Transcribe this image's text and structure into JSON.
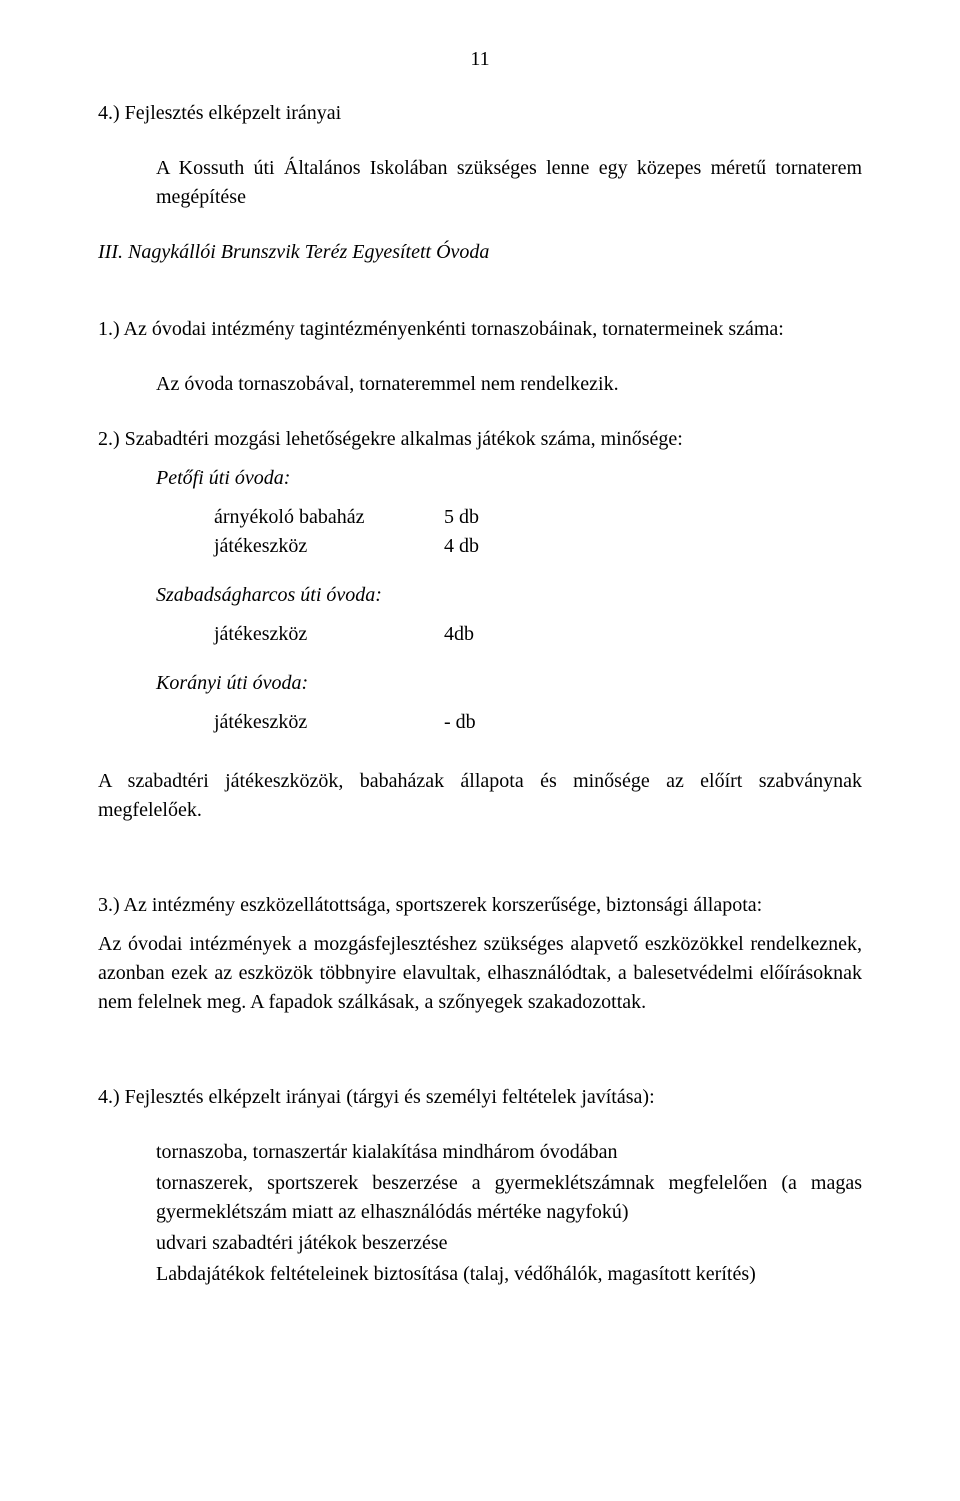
{
  "page_number": "11",
  "colors": {
    "text": "#000000",
    "background": "#ffffff"
  },
  "typography": {
    "family": "Book Antiqua / Palatino serif",
    "body_size_pt": 15
  },
  "s4_title": "4.) Fejlesztés elképzelt irányai",
  "s4_body": "A Kossuth úti Általános Iskolában szükséges lenne egy közepes méretű tornaterem megépítése",
  "iii_title": "III. Nagykállói Brunszvik Teréz  Egyesített Óvoda",
  "p1_title": "1.) Az óvodai intézmény tagintézményenkénti tornaszobáinak, tornatermeinek száma:",
  "p1_body": "Az óvoda tornaszobával, tornateremmel nem rendelkezik.",
  "p2_title": "2.) Szabadtéri mozgási lehetőségekre alkalmas játékok száma, minősége:",
  "ovoda_a": "Petőfi úti óvoda:",
  "ovoda_b": "Szabadságharcos úti óvoda:",
  "ovoda_c": "Korányi úti óvoda:",
  "rows_a": [
    {
      "label": "árnyékoló babaház",
      "value": "5 db"
    },
    {
      "label": "játékeszköz",
      "value": "4 db"
    }
  ],
  "rows_b": [
    {
      "label": "játékeszköz",
      "value": "4db"
    }
  ],
  "rows_c": [
    {
      "label": "játékeszköz",
      "value": "- db"
    }
  ],
  "p2_after": "A szabadtéri játékeszközök, babaházak állapota és minősége az előírt szabványnak megfelelőek.",
  "p3_title": "3.) Az intézmény eszközellátottsága, sportszerek korszerűsége, biztonsági állapota:",
  "p3_body": "Az óvodai intézmények a mozgásfejlesztéshez szükséges alapvető eszközökkel rendelkeznek, azonban ezek az eszközök többnyire elavultak, elhasználódtak, a balesetvédelmi előírásoknak nem felelnek meg. A fapadok szálkásak, a szőnyegek szakadozottak.",
  "p4_title": "4.) Fejlesztés elképzelt irányai (tárgyi és személyi feltételek javítása):",
  "p4_bullets": [
    "tornaszoba, tornaszertár kialakítása mindhárom óvodában",
    "tornaszerek, sportszerek beszerzése a gyermeklétszámnak megfelelően (a magas gyermeklétszám miatt az elhasználódás mértéke nagyfokú)",
    "udvari szabadtéri játékok beszerzése",
    "Labdajátékok feltételeinek biztosítása (talaj, védőhálók, magasított kerítés)"
  ]
}
